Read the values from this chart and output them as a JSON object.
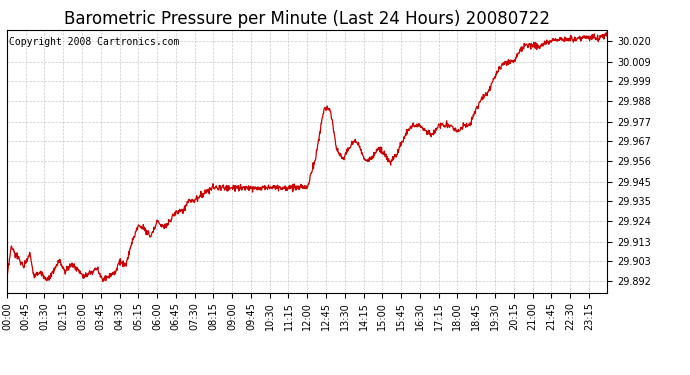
{
  "title": "Barometric Pressure per Minute (Last 24 Hours) 20080722",
  "copyright_text": "Copyright 2008 Cartronics.com",
  "line_color": "#cc0000",
  "background_color": "#ffffff",
  "grid_color": "#bbbbbb",
  "yticks": [
    29.892,
    29.903,
    29.913,
    29.924,
    29.935,
    29.945,
    29.956,
    29.967,
    29.977,
    29.988,
    29.999,
    30.009,
    30.02
  ],
  "ylim": [
    29.886,
    30.026
  ],
  "xtick_labels": [
    "00:00",
    "00:45",
    "01:30",
    "02:15",
    "03:00",
    "03:45",
    "04:30",
    "05:15",
    "06:00",
    "06:45",
    "07:30",
    "08:15",
    "09:00",
    "09:45",
    "10:30",
    "11:15",
    "12:00",
    "12:45",
    "13:30",
    "14:15",
    "15:00",
    "15:45",
    "16:30",
    "17:15",
    "18:00",
    "18:45",
    "19:30",
    "20:15",
    "21:00",
    "21:45",
    "22:30",
    "23:15"
  ],
  "keypoints": [
    [
      0,
      29.893
    ],
    [
      10,
      29.91
    ],
    [
      25,
      29.905
    ],
    [
      40,
      29.9
    ],
    [
      55,
      29.907
    ],
    [
      65,
      29.895
    ],
    [
      80,
      29.897
    ],
    [
      95,
      29.892
    ],
    [
      110,
      29.896
    ],
    [
      125,
      29.903
    ],
    [
      140,
      29.897
    ],
    [
      155,
      29.901
    ],
    [
      170,
      29.898
    ],
    [
      185,
      29.895
    ],
    [
      200,
      29.896
    ],
    [
      215,
      29.899
    ],
    [
      230,
      29.893
    ],
    [
      245,
      29.895
    ],
    [
      260,
      29.897
    ],
    [
      270,
      29.903
    ],
    [
      285,
      29.9
    ],
    [
      300,
      29.913
    ],
    [
      315,
      29.922
    ],
    [
      330,
      29.92
    ],
    [
      345,
      29.916
    ],
    [
      360,
      29.924
    ],
    [
      375,
      29.921
    ],
    [
      390,
      29.924
    ],
    [
      405,
      29.929
    ],
    [
      420,
      29.929
    ],
    [
      435,
      29.935
    ],
    [
      450,
      29.935
    ],
    [
      465,
      29.938
    ],
    [
      480,
      29.94
    ],
    [
      495,
      29.942
    ],
    [
      510,
      29.942
    ],
    [
      525,
      29.942
    ],
    [
      540,
      29.942
    ],
    [
      555,
      29.942
    ],
    [
      570,
      29.942
    ],
    [
      585,
      29.942
    ],
    [
      600,
      29.942
    ],
    [
      615,
      29.942
    ],
    [
      630,
      29.942
    ],
    [
      645,
      29.942
    ],
    [
      660,
      29.942
    ],
    [
      675,
      29.942
    ],
    [
      690,
      29.942
    ],
    [
      705,
      29.942
    ],
    [
      720,
      29.942
    ],
    [
      740,
      29.958
    ],
    [
      760,
      29.984
    ],
    [
      775,
      29.984
    ],
    [
      790,
      29.963
    ],
    [
      805,
      29.957
    ],
    [
      820,
      29.963
    ],
    [
      835,
      29.967
    ],
    [
      850,
      29.962
    ],
    [
      860,
      29.956
    ],
    [
      875,
      29.958
    ],
    [
      890,
      29.963
    ],
    [
      905,
      29.96
    ],
    [
      920,
      29.955
    ],
    [
      935,
      29.96
    ],
    [
      950,
      29.967
    ],
    [
      960,
      29.972
    ],
    [
      975,
      29.975
    ],
    [
      990,
      29.975
    ],
    [
      1005,
      29.972
    ],
    [
      1020,
      29.97
    ],
    [
      1035,
      29.975
    ],
    [
      1050,
      29.975
    ],
    [
      1065,
      29.975
    ],
    [
      1080,
      29.972
    ],
    [
      1095,
      29.975
    ],
    [
      1110,
      29.975
    ],
    [
      1125,
      29.984
    ],
    [
      1140,
      29.99
    ],
    [
      1155,
      29.993
    ],
    [
      1170,
      30.001
    ],
    [
      1185,
      30.007
    ],
    [
      1200,
      30.009
    ],
    [
      1215,
      30.009
    ],
    [
      1230,
      30.015
    ],
    [
      1245,
      30.018
    ],
    [
      1260,
      30.018
    ],
    [
      1275,
      30.017
    ],
    [
      1290,
      30.019
    ],
    [
      1310,
      30.021
    ],
    [
      1330,
      30.021
    ],
    [
      1360,
      30.021
    ],
    [
      1390,
      30.022
    ],
    [
      1420,
      30.022
    ],
    [
      1439,
      30.024
    ]
  ],
  "title_fontsize": 12,
  "tick_fontsize": 7,
  "copyright_fontsize": 7
}
